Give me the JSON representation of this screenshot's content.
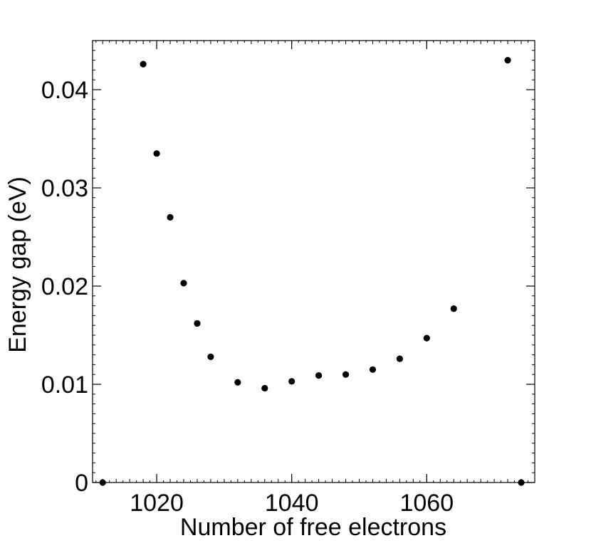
{
  "chart_data": {
    "type": "scatter",
    "title": "",
    "xlabel": "Number of free electrons",
    "ylabel": "Energy gap (eV)",
    "xlim": [
      1010.5,
      1076
    ],
    "ylim": [
      0,
      0.045
    ],
    "x_ticks": [
      1020,
      1040,
      1060
    ],
    "x_tick_labels": [
      "1020",
      "1040",
      "1060"
    ],
    "y_ticks": [
      0,
      0.01,
      0.02,
      0.03,
      0.04
    ],
    "y_tick_labels": [
      "0",
      "0.01",
      "0.02",
      "0.03",
      "0.04"
    ],
    "grid": false,
    "legend": "none",
    "marker_color": "#000000",
    "series": [
      {
        "points": [
          {
            "x": 1012,
            "y": 0.0
          },
          {
            "x": 1018,
            "y": 0.0426
          },
          {
            "x": 1020,
            "y": 0.0335
          },
          {
            "x": 1022,
            "y": 0.027
          },
          {
            "x": 1024,
            "y": 0.0203
          },
          {
            "x": 1026,
            "y": 0.0162
          },
          {
            "x": 1028,
            "y": 0.0128
          },
          {
            "x": 1032,
            "y": 0.0102
          },
          {
            "x": 1036,
            "y": 0.0096
          },
          {
            "x": 1040,
            "y": 0.0103
          },
          {
            "x": 1044,
            "y": 0.0109
          },
          {
            "x": 1048,
            "y": 0.011
          },
          {
            "x": 1052,
            "y": 0.0115
          },
          {
            "x": 1056,
            "y": 0.0126
          },
          {
            "x": 1060,
            "y": 0.0147
          },
          {
            "x": 1064,
            "y": 0.0177
          },
          {
            "x": 1072,
            "y": 0.043
          },
          {
            "x": 1074,
            "y": 0.0
          }
        ]
      }
    ]
  }
}
